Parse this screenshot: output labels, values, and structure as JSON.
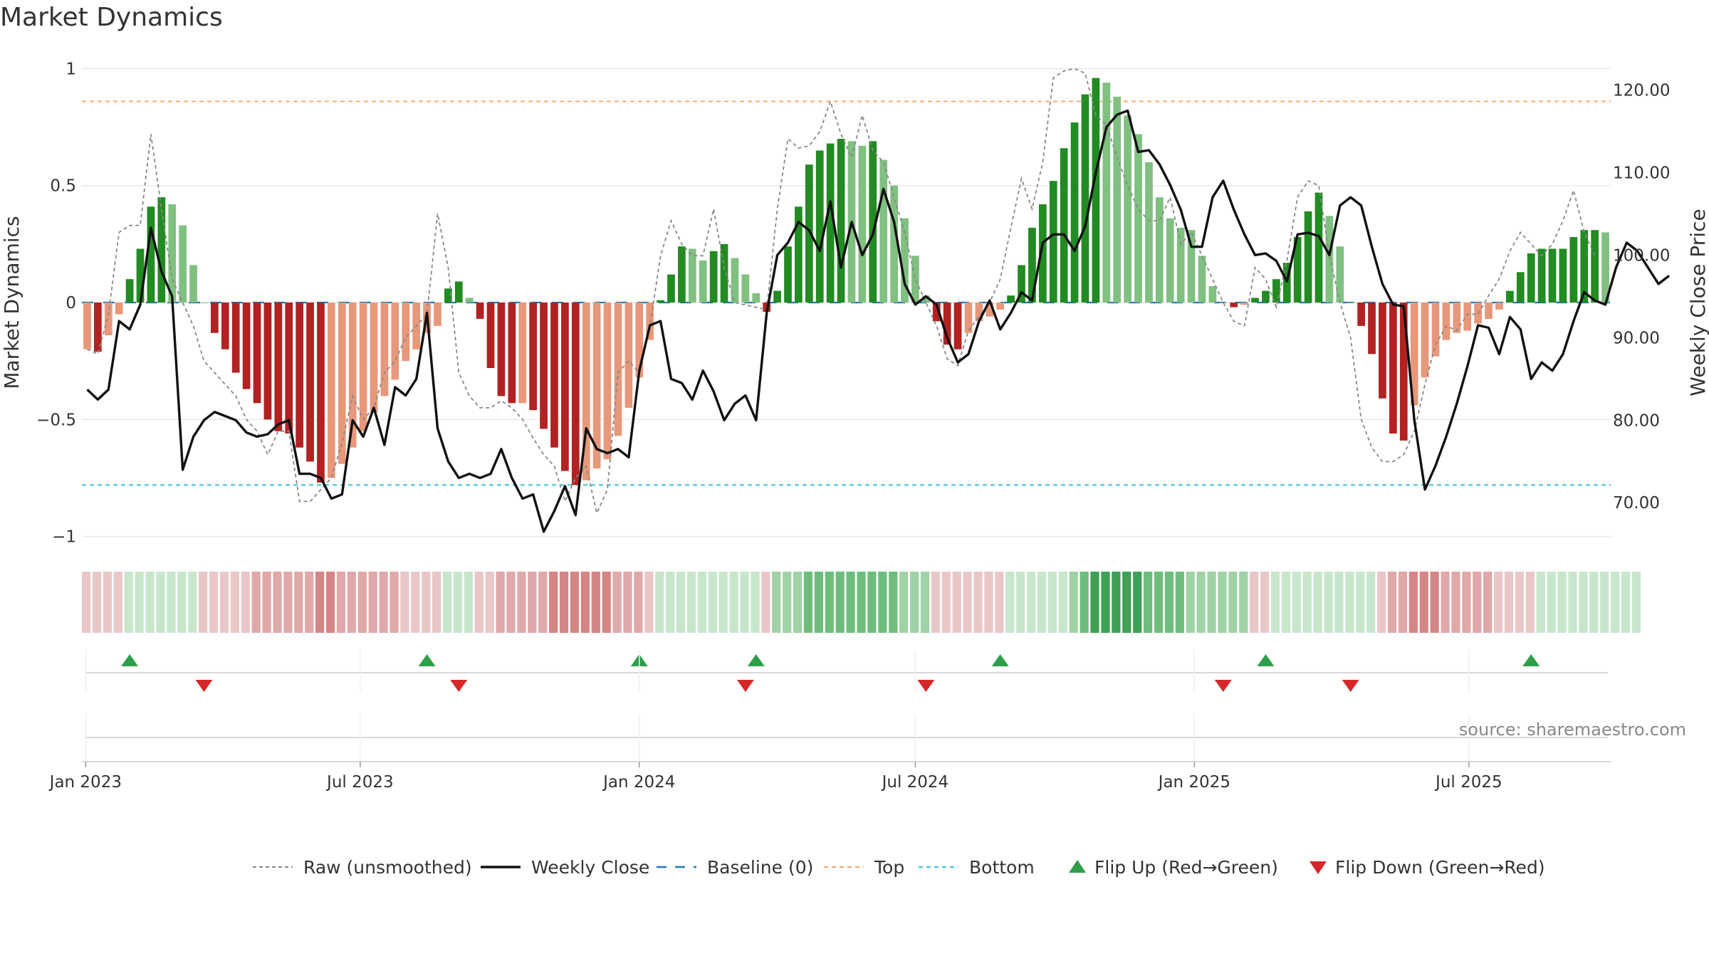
{
  "title": "Market Dynamics",
  "source": "source: sharemaestro.com",
  "colors": {
    "green_dark": "#228b22",
    "green_light": "#80c080",
    "red_dark": "#b22222",
    "red_light": "#e8987a",
    "close": "#111111",
    "raw": "#888888",
    "baseline": "#1f77b4",
    "top": "#f0b27a",
    "bottom": "#4cc9d8",
    "flip_up": "#2e9e4a",
    "flip_down": "#d62728"
  },
  "chart_data": {
    "type": "bar",
    "start": "2023-01-02",
    "left_axis": {
      "label": "Market Dynamics",
      "range": [
        -1.05,
        1.05
      ],
      "ticks": [
        "1",
        "0.5",
        "0",
        "−0.5",
        "−1"
      ],
      "tick_values": [
        1,
        0.5,
        0,
        -0.5,
        -1
      ]
    },
    "right_axis": {
      "label": "Weekly Close Price",
      "range": [
        64.5,
        124.0
      ],
      "ticks": [
        "120.00",
        "110.00",
        "100.00",
        "90.00",
        "80.00",
        "70.00"
      ],
      "tick_values": [
        120,
        110,
        100,
        90,
        80,
        70
      ]
    },
    "x_ticks": [
      {
        "label": "Jan 2023",
        "date": "2023-01-01"
      },
      {
        "label": "Jul 2023",
        "date": "2023-07-01"
      },
      {
        "label": "Jan 2024",
        "date": "2024-01-01"
      },
      {
        "label": "Jul 2024",
        "date": "2024-07-01"
      },
      {
        "label": "Jan 2025",
        "date": "2025-01-01"
      },
      {
        "label": "Jul 2025",
        "date": "2025-07-01"
      }
    ],
    "top_line": 0.86,
    "bottom_line": -0.78,
    "momentum": [
      -0.2,
      -0.21,
      -0.14,
      -0.05,
      0.1,
      0.23,
      0.41,
      0.45,
      0.42,
      0.33,
      0.16,
      0.0,
      -0.13,
      -0.2,
      -0.3,
      -0.37,
      -0.43,
      -0.5,
      -0.55,
      -0.56,
      -0.62,
      -0.68,
      -0.77,
      -0.75,
      -0.69,
      -0.62,
      -0.55,
      -0.47,
      -0.4,
      -0.33,
      -0.25,
      -0.2,
      -0.13,
      -0.1,
      0.06,
      0.09,
      0.02,
      -0.07,
      -0.28,
      -0.4,
      -0.43,
      -0.43,
      -0.46,
      -0.54,
      -0.62,
      -0.72,
      -0.78,
      -0.76,
      -0.71,
      -0.67,
      -0.57,
      -0.45,
      -0.32,
      -0.16,
      0.01,
      0.12,
      0.24,
      0.23,
      0.18,
      0.22,
      0.25,
      0.19,
      0.12,
      0.04,
      -0.04,
      0.05,
      0.24,
      0.41,
      0.59,
      0.65,
      0.68,
      0.7,
      0.69,
      0.67,
      0.69,
      0.61,
      0.5,
      0.36,
      0.2,
      0.03,
      -0.08,
      -0.18,
      -0.2,
      -0.13,
      -0.08,
      -0.06,
      -0.03,
      0.03,
      0.16,
      0.32,
      0.42,
      0.52,
      0.66,
      0.77,
      0.89,
      0.96,
      0.94,
      0.88,
      0.8,
      0.72,
      0.6,
      0.45,
      0.36,
      0.32,
      0.31,
      0.2,
      0.07,
      0.0,
      -0.02,
      -0.01,
      0.02,
      0.05,
      0.1,
      0.17,
      0.28,
      0.39,
      0.47,
      0.37,
      0.24,
      0.0,
      -0.1,
      -0.22,
      -0.41,
      -0.56,
      -0.59,
      -0.44,
      -0.32,
      -0.23,
      -0.16,
      -0.13,
      -0.12,
      -0.09,
      -0.07,
      -0.03,
      0.05,
      0.13,
      0.21,
      0.23,
      0.23,
      0.23,
      0.28,
      0.31,
      0.31,
      0.3
    ],
    "raw": [
      -0.2,
      -0.22,
      -0.05,
      0.3,
      0.33,
      0.33,
      0.72,
      0.4,
      0.1,
      0.0,
      -0.1,
      -0.25,
      -0.3,
      -0.35,
      -0.4,
      -0.5,
      -0.55,
      -0.65,
      -0.55,
      -0.55,
      -0.85,
      -0.85,
      -0.8,
      -0.75,
      -0.6,
      -0.4,
      -0.5,
      -0.45,
      -0.3,
      -0.25,
      -0.15,
      -0.1,
      -0.05,
      0.38,
      0.15,
      -0.3,
      -0.4,
      -0.45,
      -0.45,
      -0.42,
      -0.45,
      -0.5,
      -0.58,
      -0.65,
      -0.7,
      -0.85,
      -0.75,
      -0.7,
      -0.9,
      -0.8,
      -0.3,
      -0.25,
      -0.3,
      -0.1,
      0.2,
      0.35,
      0.25,
      0.2,
      0.2,
      0.4,
      0.15,
      0.0,
      -0.01,
      -0.02,
      -0.03,
      0.4,
      0.7,
      0.66,
      0.67,
      0.73,
      0.86,
      0.72,
      0.62,
      0.8,
      0.65,
      0.6,
      0.45,
      0.3,
      0.1,
      0.0,
      -0.1,
      -0.24,
      -0.27,
      -0.12,
      -0.06,
      0.0,
      0.1,
      0.32,
      0.53,
      0.4,
      0.6,
      0.96,
      0.99,
      1.0,
      0.98,
      0.8,
      0.76,
      0.62,
      0.5,
      0.4,
      0.35,
      0.35,
      0.45,
      0.25,
      0.3,
      0.2,
      0.1,
      0.0,
      -0.08,
      -0.1,
      0.15,
      0.1,
      -0.02,
      0.18,
      0.45,
      0.52,
      0.5,
      0.2,
      0.0,
      -0.15,
      -0.5,
      -0.62,
      -0.68,
      -0.68,
      -0.65,
      -0.55,
      -0.35,
      -0.18,
      -0.1,
      -0.12,
      -0.05,
      -0.05,
      0.03,
      0.1,
      0.22,
      0.3,
      0.25,
      0.2,
      0.25,
      0.35,
      0.48,
      0.3,
      0.2
    ],
    "close": [
      83.7,
      82.5,
      83.7,
      92.0,
      91.0,
      94.0,
      103.3,
      98.0,
      95.0,
      74.0,
      78.0,
      80.0,
      81.0,
      80.5,
      80.0,
      78.5,
      78.0,
      78.3,
      79.5,
      80.0,
      73.5,
      73.5,
      73.0,
      70.5,
      71.0,
      80.0,
      78.0,
      81.5,
      77.0,
      84.0,
      83.0,
      85.0,
      93.0,
      79.0,
      75.0,
      73.0,
      73.5,
      73.0,
      73.5,
      76.5,
      73.0,
      70.5,
      71.0,
      66.5,
      69.0,
      72.0,
      68.5,
      79.0,
      76.5,
      76.0,
      76.5,
      75.5,
      86.0,
      91.5,
      92.0,
      85.0,
      84.5,
      82.5,
      86.0,
      83.5,
      80.0,
      82.0,
      83.0,
      80.0,
      93.0,
      100.0,
      101.5,
      104.0,
      103.0,
      100.5,
      106.5,
      98.5,
      104.0,
      100.0,
      102.5,
      108.0,
      104.0,
      96.5,
      94.0,
      95.0,
      94.0,
      90.0,
      87.0,
      88.0,
      92.0,
      94.5,
      91.0,
      93.0,
      95.5,
      94.5,
      101.5,
      102.5,
      102.5,
      100.5,
      103.5,
      110.0,
      115.5,
      117.0,
      117.5,
      112.5,
      112.7,
      111.0,
      108.5,
      105.5,
      101.0,
      101.0,
      107.0,
      109.0,
      105.5,
      102.5,
      100.0,
      100.2,
      99.3,
      96.8,
      102.5,
      102.7,
      102.3,
      100.0,
      106.0,
      107.0,
      106.0,
      101.0,
      96.5,
      94.0,
      93.8,
      80.0,
      71.6,
      74.5,
      78.0,
      82.0,
      86.5,
      91.5,
      91.2,
      88.0,
      92.5,
      91.0,
      85.0,
      87.0,
      86.0,
      88.0,
      92.0,
      95.5,
      94.5,
      94.0,
      98.5,
      101.5,
      100.5,
      98.5,
      96.5,
      97.5
    ],
    "ribbon_levels": [
      -1,
      -1,
      -1,
      -1,
      1,
      1,
      1,
      1,
      1,
      1,
      1,
      -1,
      -1,
      -1,
      -1,
      -1,
      -2,
      -2,
      -2,
      -2,
      -2,
      -2,
      -3,
      -3,
      -2,
      -2,
      -2,
      -2,
      -2,
      -2,
      -1,
      -1,
      -1,
      -1,
      1,
      1,
      1,
      -1,
      -1,
      -2,
      -2,
      -2,
      -2,
      -2,
      -3,
      -3,
      -3,
      -3,
      -3,
      -3,
      -2,
      -2,
      -2,
      -1,
      1,
      1,
      1,
      1,
      1,
      1,
      1,
      1,
      1,
      1,
      -1,
      2,
      2,
      2,
      3,
      3,
      3,
      3,
      3,
      3,
      3,
      3,
      3,
      2,
      2,
      2,
      -1,
      -1,
      -1,
      -1,
      -1,
      -1,
      -1,
      1,
      1,
      1,
      1,
      1,
      1,
      2,
      3,
      4,
      4,
      4,
      4,
      4,
      3,
      3,
      3,
      3,
      2,
      2,
      2,
      2,
      2,
      2,
      -1,
      -1,
      1,
      1,
      1,
      1,
      1,
      1,
      1,
      1,
      1,
      1,
      -1,
      -2,
      -2,
      -3,
      -3,
      -3,
      -2,
      -2,
      -2,
      -2,
      -2,
      -1,
      -1,
      -1,
      -1,
      1,
      1,
      1,
      1,
      1,
      1,
      1,
      1,
      1,
      1
    ],
    "flips_up": [
      4,
      32,
      52,
      63,
      86,
      111,
      136
    ],
    "flips_down": [
      11,
      35,
      62,
      79,
      107,
      119
    ],
    "legend": [
      {
        "key": "raw",
        "label": "Raw (unsmoothed)"
      },
      {
        "key": "close",
        "label": "Weekly Close"
      },
      {
        "key": "baseline",
        "label": "Baseline (0)"
      },
      {
        "key": "top",
        "label": "Top"
      },
      {
        "key": "bottom",
        "label": "Bottom"
      },
      {
        "key": "flip_up",
        "label": "Flip Up (Red→Green)"
      },
      {
        "key": "flip_down",
        "label": "Flip Down (Green→Red)"
      }
    ]
  }
}
